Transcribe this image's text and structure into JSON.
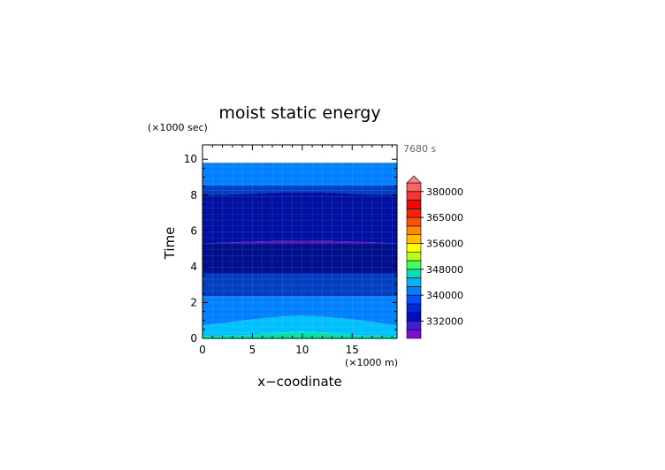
{
  "chart_data": {
    "type": "heatmap",
    "title": "moist static energy",
    "xlabel": "x−coodinate",
    "ylabel": "Time",
    "x_unit": "(×1000 m)",
    "y_unit": "(×1000 sec)",
    "time_label": "7680 s",
    "xlim": [
      0,
      19.5
    ],
    "ylim": [
      0,
      10.8
    ],
    "xticks": [
      "0",
      "5",
      "10",
      "15"
    ],
    "yticks": [
      "0",
      "2",
      "4",
      "6",
      "8",
      "10"
    ],
    "data_top": 9.8,
    "bands": [
      {
        "color": "#00e6a8",
        "x": [
          0,
          2,
          4,
          6,
          8,
          10,
          12,
          14,
          16,
          18,
          19.5
        ],
        "y": [
          0,
          0,
          0,
          0,
          0,
          0,
          0,
          0,
          0,
          0,
          0
        ]
      },
      {
        "color": "#00c0ff",
        "x": [
          0,
          2,
          4,
          6,
          8,
          10,
          12,
          14,
          16,
          18,
          19.5
        ],
        "y": [
          0.15,
          0.15,
          0.18,
          0.25,
          0.33,
          0.38,
          0.33,
          0.25,
          0.18,
          0.15,
          0.15
        ]
      },
      {
        "color": "#0080ff",
        "x": [
          0,
          2,
          4,
          6,
          8,
          10,
          12,
          14,
          16,
          18,
          19.5
        ],
        "y": [
          0.75,
          0.85,
          1.0,
          1.12,
          1.22,
          1.27,
          1.22,
          1.12,
          1.0,
          0.85,
          0.75
        ]
      },
      {
        "color": "#0040c0",
        "x": [
          0,
          19.5
        ],
        "y": [
          2.35,
          2.35
        ]
      },
      {
        "color": "#0010a0",
        "x": [
          0,
          19.5
        ],
        "y": [
          3.6,
          3.6
        ]
      },
      {
        "color": "#00108c",
        "x": [
          0,
          19.5
        ],
        "y": [
          3.8,
          3.8
        ]
      },
      {
        "color": "#7010b0",
        "x": [
          0,
          19.5
        ],
        "y": [
          5.3,
          5.3
        ]
      },
      {
        "color": "#0010a0",
        "x": [
          0,
          2,
          4,
          6,
          8,
          10,
          12,
          14,
          16,
          18,
          19.5
        ],
        "y": [
          5.3,
          5.34,
          5.38,
          5.42,
          5.44,
          5.45,
          5.44,
          5.42,
          5.38,
          5.34,
          5.3
        ]
      },
      {
        "color": "#0040c0",
        "x": [
          0,
          2,
          4,
          6,
          8,
          10,
          12,
          14,
          16,
          18,
          19.5
        ],
        "y": [
          8.0,
          8.02,
          8.06,
          8.12,
          8.16,
          8.18,
          8.16,
          8.12,
          8.06,
          8.02,
          8.0
        ]
      },
      {
        "color": "#0080ff",
        "x": [
          0,
          19.5
        ],
        "y": [
          8.55,
          8.55
        ]
      }
    ],
    "colorbar": {
      "labels": [
        "332000",
        "340000",
        "348000",
        "356000",
        "365000",
        "380000"
      ],
      "colors": [
        "#7a10c8",
        "#4020c8",
        "#0010b4",
        "#0028d8",
        "#0050ff",
        "#0080ff",
        "#00b4ff",
        "#00e0c0",
        "#40ff60",
        "#b4ff20",
        "#ffff00",
        "#ffc000",
        "#ff8c00",
        "#ff5000",
        "#ff2000",
        "#ff0000",
        "#ff3030",
        "#ff6060"
      ],
      "extend_color": "#ff8080"
    }
  }
}
